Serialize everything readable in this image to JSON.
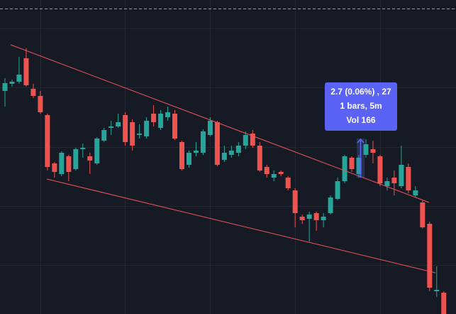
{
  "chart_data": {
    "type": "candlestick",
    "categories": [
      null,
      null,
      null,
      null,
      null,
      null,
      null,
      null,
      null,
      null,
      null,
      null,
      null,
      null,
      null,
      null,
      null,
      null,
      null,
      null,
      null,
      null,
      null,
      null,
      null,
      null,
      null,
      null,
      null,
      null,
      null,
      null,
      null,
      null,
      null,
      null,
      null,
      null,
      null,
      null,
      null,
      null,
      null,
      null,
      null,
      null,
      null,
      null,
      null,
      null,
      null,
      null,
      null,
      null,
      null,
      null,
      null,
      null,
      null,
      null,
      null,
      null,
      null
    ],
    "open": [
      4504.7,
      4505.2,
      4505.35,
      4507.0,
      4504.85,
      4504.35,
      4503.0,
      4499.6,
      4498.85,
      4500.1,
      4499.2,
      4500.6,
      4500.1,
      4499.6,
      4501.2,
      4502.1,
      4502.2,
      4503.0,
      4502.5,
      4501.6,
      4501.5,
      4503.1,
      4502.1,
      4502.85,
      4503.1,
      4501.1,
      4499.5,
      4500.35,
      4500.35,
      4501.6,
      4502.5,
      4499.85,
      4500.2,
      4500.35,
      4500.85,
      4501.7,
      4500.85,
      4499.35,
      4498.6,
      4499.0,
      4498.6,
      4497.7,
      4495.85,
      4495.7,
      4496.1,
      4495.6,
      4496.1,
      4497.1,
      4498.35,
      4500.0,
      4498.85,
      4500.2,
      4500.6,
      4500.1,
      4498.0,
      4498.6,
      4498.0,
      4499.35,
      4497.35,
      4496.85,
      4495.35,
      4490.6,
      4490.5
    ],
    "high": [
      4505.6,
      4505.5,
      4507.1,
      4507.7,
      4505.2,
      4504.7,
      4503.1,
      4499.7,
      4500.45,
      4500.2,
      4500.7,
      4501.0,
      4500.35,
      4501.45,
      4502.1,
      4502.6,
      4503.1,
      4503.2,
      4502.7,
      4502.35,
      4502.85,
      4503.7,
      4503.35,
      4503.6,
      4503.35,
      4501.2,
      4500.5,
      4501.1,
      4502.0,
      4502.85,
      4502.6,
      4500.85,
      4500.85,
      4501.1,
      4501.85,
      4501.95,
      4501.1,
      4499.5,
      4499.1,
      4499.1,
      4498.7,
      4497.85,
      4496.0,
      4496.2,
      4496.2,
      4496.1,
      4497.35,
      4498.6,
      4500.2,
      4500.1,
      4500.2,
      4501.3,
      4501.2,
      4500.2,
      4498.6,
      4499.1,
      4500.85,
      4499.6,
      4498.0,
      4497.0,
      4495.5,
      4492.35,
      4490.6
    ],
    "low": [
      4503.6,
      4505.0,
      4505.2,
      4505.0,
      4504.2,
      4503.1,
      4499.1,
      4498.6,
      4498.7,
      4498.35,
      4499.1,
      4500.0,
      4498.85,
      4499.5,
      4501.1,
      4501.6,
      4502.1,
      4500.85,
      4500.5,
      4501.35,
      4501.35,
      4502.2,
      4501.95,
      4502.6,
      4501.25,
      4499.1,
      4499.3,
      4500.1,
      4500.2,
      4501.5,
      4499.4,
      4499.7,
      4500.0,
      4500.1,
      4500.6,
      4500.7,
      4499.0,
      4498.6,
      4498.35,
      4498.7,
      4497.7,
      4495.1,
      4495.35,
      4494.1,
      4494.85,
      4495.1,
      4496.0,
      4497.0,
      4498.2,
      4499.0,
      4498.6,
      4500.0,
      4499.6,
      4498.0,
      4497.7,
      4497.35,
      4497.85,
      4497.5,
      4497.2,
      4495.0,
      4490.6,
      4490.2,
      4488.9
    ],
    "close": [
      4505.25,
      4505.35,
      4505.85,
      4505.1,
      4504.35,
      4503.2,
      4499.35,
      4499.0,
      4500.35,
      4499.0,
      4500.6,
      4500.7,
      4499.8,
      4501.35,
      4501.95,
      4502.2,
      4502.5,
      4501.1,
      4500.85,
      4501.7,
      4502.6,
      4502.5,
      4503.1,
      4503.2,
      4501.35,
      4499.2,
      4500.35,
      4500.5,
      4501.85,
      4502.6,
      4499.5,
      4500.35,
      4500.5,
      4500.85,
      4501.6,
      4500.85,
      4499.1,
      4498.85,
      4498.85,
      4498.85,
      4497.85,
      4496.1,
      4495.6,
      4496.0,
      4495.6,
      4495.85,
      4497.2,
      4498.35,
      4500.1,
      4499.2,
      4500.0,
      4500.95,
      4500.35,
      4498.2,
      4498.35,
      4498.2,
      4499.5,
      4497.7,
      4497.7,
      4495.1,
      4490.85,
      4490.7,
      4488.9
    ],
    "up_color": "#26a69a",
    "down_color": "#ef5350",
    "ylim": [
      4489,
      4511.1
    ],
    "annotation": [
      "2.7 (0.06%) , 27",
      "1 bars, 5m",
      "Vol 166"
    ]
  }
}
